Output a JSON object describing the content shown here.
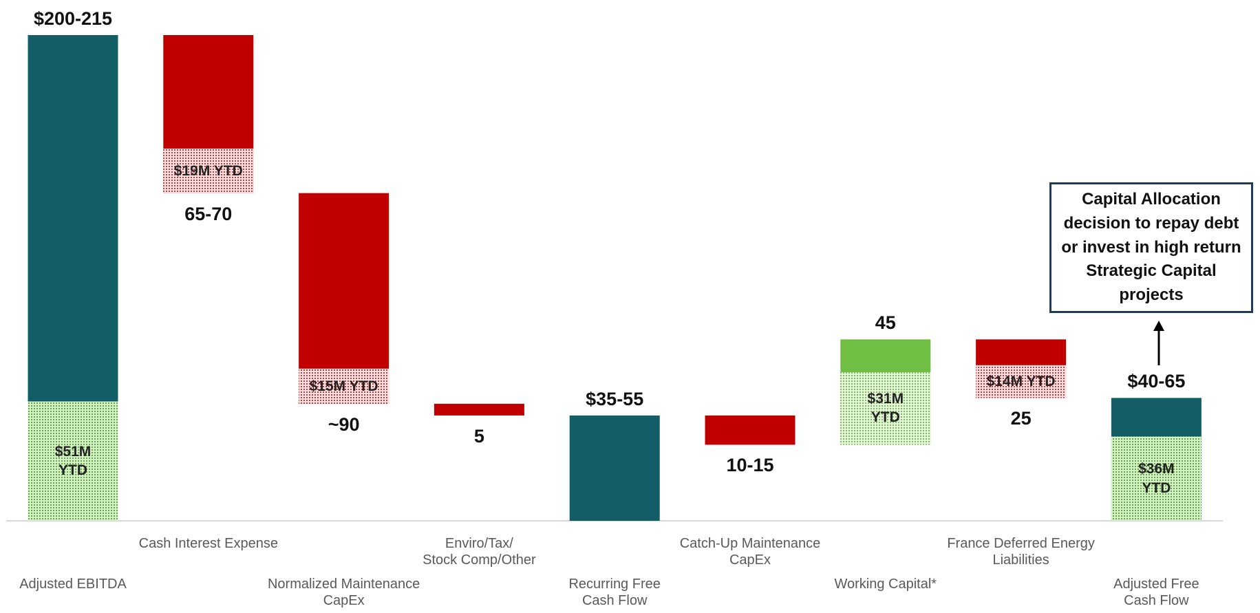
{
  "chart_data": {
    "type": "waterfall",
    "categories": [
      "Adjusted EBITDA",
      "Cash Interest Expense",
      "Normalized Maintenance\nCapEx",
      "Enviro/Tax/\nStock Comp/Other",
      "Recurring Free\nCash Flow",
      "Catch-Up Maintenance\nCapEx",
      "Working Capital*",
      "France Deferred Energy\nLiabilities",
      "Adjusted Free\nCash Flow"
    ],
    "measure": [
      "total",
      "decrease",
      "decrease",
      "decrease",
      "total",
      "decrease",
      "increase",
      "decrease",
      "total"
    ],
    "values": [
      207.5,
      67.5,
      90,
      5,
      45,
      12.5,
      45,
      25,
      52.5
    ],
    "value_labels": [
      "$200-215",
      "65-70",
      "~90",
      "5",
      "$35-55",
      "10-15",
      "45",
      "25",
      "$40-65"
    ],
    "ytd_values": [
      51,
      19,
      15,
      null,
      null,
      null,
      31,
      14,
      36
    ],
    "ytd_labels": [
      "$51M\nYTD",
      "$19M YTD",
      "$15M YTD",
      null,
      null,
      null,
      "$31M\nYTD",
      "$14M YTD",
      "$36M\nYTD"
    ],
    "colors": {
      "total": "#135e66",
      "decrease": "#c00000",
      "increase": "#70bf44"
    },
    "annotation": "Capital Allocation decision to repay debt or invest in high return Strategic Capital projects"
  }
}
